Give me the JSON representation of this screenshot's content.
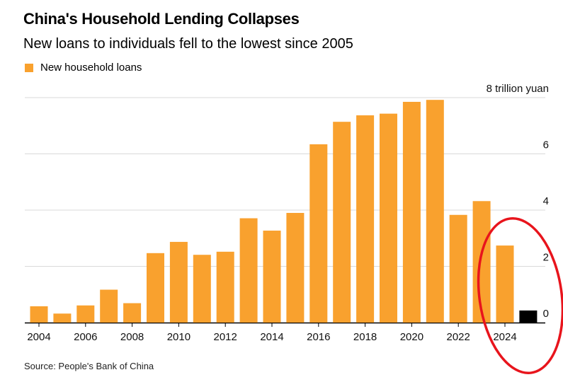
{
  "title": "China's Household Lending Collapses",
  "subtitle": "New loans to individuals fell to the lowest since 2005",
  "legend": {
    "label": "New household loans",
    "color": "#f9a12e"
  },
  "source": "Source: People's Bank of China",
  "colors": {
    "bar": "#f9a12e",
    "highlight_bar": "#000000",
    "circle": "#e8141c",
    "grid": "#d9d9d9"
  },
  "chart_data": {
    "type": "bar",
    "title": "China's Household Lending Collapses",
    "subtitle": "New loans to individuals fell to the lowest since 2005",
    "categories": [
      "2004",
      "2005",
      "2006",
      "2007",
      "2008",
      "2009",
      "2010",
      "2011",
      "2012",
      "2013",
      "2014",
      "2015",
      "2016",
      "2017",
      "2018",
      "2019",
      "2020",
      "2021",
      "2022",
      "2023",
      "2024",
      "2025"
    ],
    "series": [
      {
        "name": "New household loans",
        "values": [
          0.58,
          0.32,
          0.61,
          1.17,
          0.69,
          2.47,
          2.87,
          2.41,
          2.52,
          3.71,
          3.27,
          3.9,
          6.34,
          7.14,
          7.37,
          7.43,
          7.85,
          7.92,
          3.83,
          4.32,
          2.74,
          0.43
        ]
      }
    ],
    "highlight_category": "2025",
    "xtick_labels": [
      "2004",
      "2006",
      "2008",
      "2010",
      "2012",
      "2014",
      "2016",
      "2018",
      "2020",
      "2022",
      "2024"
    ],
    "yticks": [
      {
        "value": 0,
        "label": "0"
      },
      {
        "value": 2,
        "label": "2"
      },
      {
        "value": 4,
        "label": "4"
      },
      {
        "value": 6,
        "label": "6"
      },
      {
        "value": 8,
        "label": "8 trillion yuan"
      }
    ],
    "ylim": [
      0,
      8
    ],
    "ylabel": "",
    "xlabel": "",
    "grid": true,
    "y_axis_side": "right",
    "annotation": "red ellipse circling 2024-2025 bars"
  }
}
